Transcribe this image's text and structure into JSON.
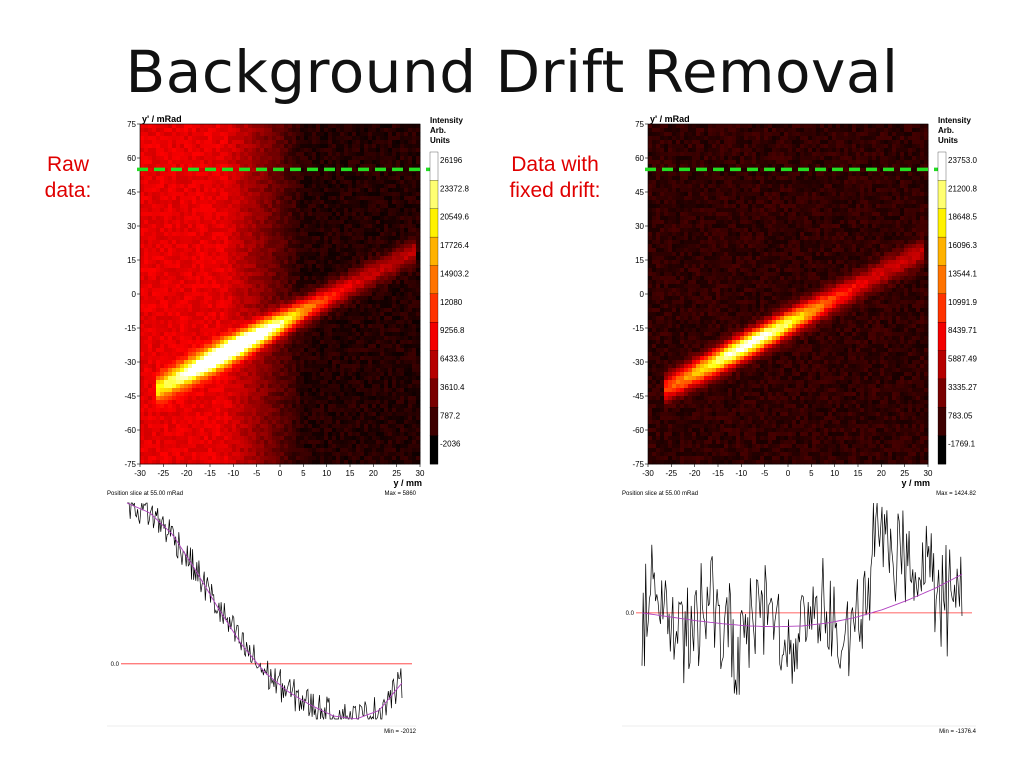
{
  "title": "Background Drift Removal",
  "labels": {
    "left": "Raw\ndata:",
    "right": "Data with\nfixed drift:"
  },
  "colors": {
    "green_dash": "#22dd22",
    "red_line": "#ff3030",
    "fit_line": "#b040c0",
    "label_red": "#e00000"
  },
  "chart_data": [
    {
      "type": "heatmap",
      "ylabel": "y' / mRad",
      "xlabel": "y / mm",
      "xticks": [
        "-30",
        "-25",
        "-20",
        "-15",
        "-10",
        "-5",
        "0",
        "5",
        "10",
        "15",
        "20",
        "25",
        "30"
      ],
      "yticks": [
        "75",
        "60",
        "45",
        "30",
        "15",
        "0",
        "-15",
        "-30",
        "-45",
        "-60",
        "-75"
      ],
      "xlim": [
        -30,
        30
      ],
      "ylim": [
        -75,
        75
      ],
      "slice_y_mrad": 55,
      "colorbar_title": [
        "Intensity",
        "Arb.",
        "Units"
      ],
      "colorbar_values": [
        "26196",
        "23372.8",
        "20549.6",
        "17726.4",
        "14903.2",
        "12080",
        "9256.8",
        "6433.6",
        "3610.4",
        "787.2",
        "-2036"
      ],
      "background_drift": true
    },
    {
      "type": "heatmap",
      "ylabel": "y' / mRad",
      "xlabel": "y / mm",
      "xticks": [
        "-30",
        "-25",
        "-20",
        "-15",
        "-10",
        "-5",
        "0",
        "5",
        "10",
        "15",
        "20",
        "25",
        "30"
      ],
      "yticks": [
        "75",
        "60",
        "45",
        "30",
        "15",
        "0",
        "-15",
        "-30",
        "-45",
        "-60",
        "-75"
      ],
      "xlim": [
        -30,
        30
      ],
      "ylim": [
        -75,
        75
      ],
      "slice_y_mrad": 55,
      "colorbar_title": [
        "Intensity",
        "Arb.",
        "Units"
      ],
      "colorbar_values": [
        "23753.0",
        "21200.8",
        "18648.5",
        "16096.3",
        "13544.1",
        "10991.9",
        "8439.71",
        "5887.49",
        "3335.27",
        "783.05",
        "-1769.1"
      ],
      "background_drift": false
    },
    {
      "type": "line",
      "title": "Position slice at 55.00 mRad",
      "max_label": "Max = 5860",
      "min_label": "Min = -2012",
      "zero_label": "0.0",
      "max": 5860,
      "min": -2012,
      "trend": [
        5860,
        5500,
        4700,
        3400,
        2000,
        700,
        -300,
        -1000,
        -1500,
        -1900,
        -2012,
        -1700,
        -700
      ]
    },
    {
      "type": "line",
      "title": "Position slice at 55.00 mRad",
      "max_label": "Max = 1424.82",
      "min_label": "Min = -1376.4",
      "zero_label": "0.0",
      "max": 1424.82,
      "min": -1376.4,
      "trend": [
        0,
        -50,
        -100,
        -140,
        -170,
        -180,
        -170,
        -130,
        -60,
        40,
        170,
        320,
        500
      ]
    }
  ]
}
